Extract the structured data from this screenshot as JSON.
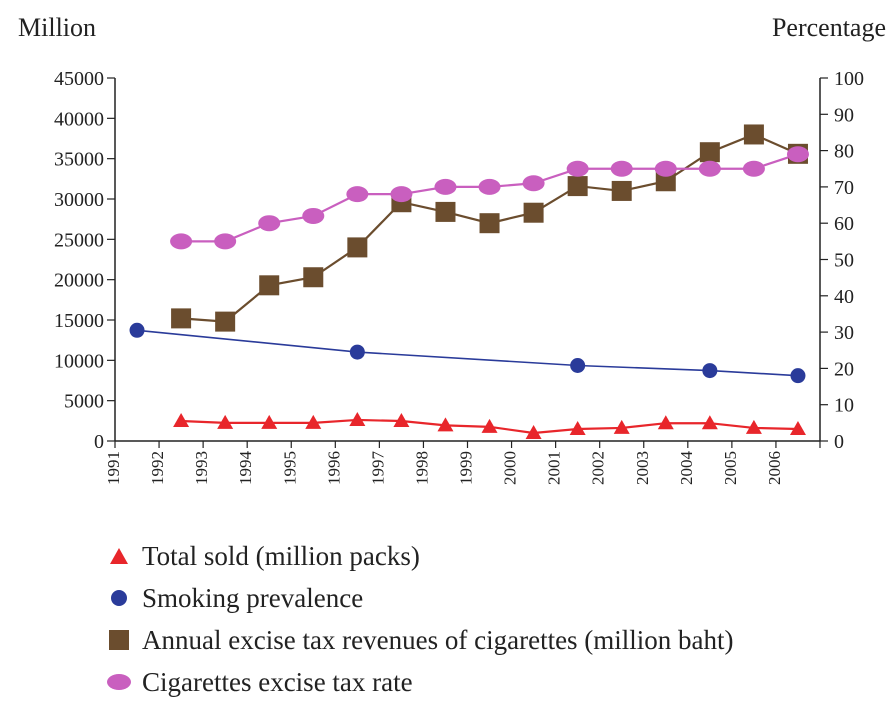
{
  "chart_data": {
    "type": "line",
    "y_left_label": "Million",
    "y_right_label": "Percentage",
    "categories": [
      "1991",
      "1992",
      "1993",
      "1994",
      "1995",
      "1996",
      "1997",
      "1998",
      "1999",
      "2000",
      "2001",
      "2002",
      "2003",
      "2004",
      "2005",
      "2006"
    ],
    "ylim_left": [
      0,
      45000
    ],
    "ylim_right": [
      0,
      100
    ],
    "left_ticks": [
      "0",
      "5000",
      "10000",
      "15000",
      "20000",
      "25000",
      "30000",
      "35000",
      "40000",
      "45000"
    ],
    "right_ticks": [
      "0",
      "10",
      "20",
      "30",
      "40",
      "50",
      "60",
      "70",
      "80",
      "90",
      "100"
    ],
    "grid": false,
    "legend_position": "bottom",
    "series": [
      {
        "name": "Total sold (million packs)",
        "axis": "right",
        "marker": "triangle",
        "color": "#e8262b",
        "points": [
          {
            "x": "1992",
            "y": 5.5
          },
          {
            "x": "1993",
            "y": 5.0
          },
          {
            "x": "1994",
            "y": 5.0
          },
          {
            "x": "1995",
            "y": 5.0
          },
          {
            "x": "1996",
            "y": 5.8
          },
          {
            "x": "1997",
            "y": 5.5
          },
          {
            "x": "1998",
            "y": 4.3
          },
          {
            "x": "1999",
            "y": 3.9
          },
          {
            "x": "2000",
            "y": 2.2
          },
          {
            "x": "2001",
            "y": 3.3
          },
          {
            "x": "2002",
            "y": 3.6
          },
          {
            "x": "2003",
            "y": 4.9
          },
          {
            "x": "2004",
            "y": 4.9
          },
          {
            "x": "2005",
            "y": 3.6
          },
          {
            "x": "2006",
            "y": 3.3
          }
        ]
      },
      {
        "name": "Smoking prevalence",
        "axis": "right",
        "marker": "circle",
        "color": "#2a3b9a",
        "points": [
          {
            "x": "1991",
            "y": 30.5
          },
          {
            "x": "1996",
            "y": 24.5
          },
          {
            "x": "2001",
            "y": 20.8
          },
          {
            "x": "2004",
            "y": 19.4
          },
          {
            "x": "2006",
            "y": 18.0
          }
        ]
      },
      {
        "name": "Annual excise tax revenues of cigarettes (million baht)",
        "axis": "left",
        "marker": "square",
        "color": "#6b4d2e",
        "points": [
          {
            "x": "1992",
            "y": 15200
          },
          {
            "x": "1993",
            "y": 14800
          },
          {
            "x": "1994",
            "y": 19300
          },
          {
            "x": "1995",
            "y": 20300
          },
          {
            "x": "1996",
            "y": 24000
          },
          {
            "x": "1997",
            "y": 29600
          },
          {
            "x": "1998",
            "y": 28400
          },
          {
            "x": "1999",
            "y": 27000
          },
          {
            "x": "2000",
            "y": 28300
          },
          {
            "x": "2001",
            "y": 31600
          },
          {
            "x": "2002",
            "y": 31000
          },
          {
            "x": "2003",
            "y": 32200
          },
          {
            "x": "2004",
            "y": 35800
          },
          {
            "x": "2005",
            "y": 38000
          },
          {
            "x": "2006",
            "y": 35600
          }
        ]
      },
      {
        "name": "Cigarettes excise tax rate",
        "axis": "right",
        "marker": "ellipse",
        "color": "#c95fbf",
        "points": [
          {
            "x": "1992",
            "y": 55
          },
          {
            "x": "1993",
            "y": 55
          },
          {
            "x": "1994",
            "y": 60
          },
          {
            "x": "1995",
            "y": 62
          },
          {
            "x": "1996",
            "y": 68
          },
          {
            "x": "1997",
            "y": 68
          },
          {
            "x": "1998",
            "y": 70
          },
          {
            "x": "1999",
            "y": 70
          },
          {
            "x": "2000",
            "y": 71
          },
          {
            "x": "2001",
            "y": 75
          },
          {
            "x": "2002",
            "y": 75
          },
          {
            "x": "2003",
            "y": 75
          },
          {
            "x": "2004",
            "y": 75
          },
          {
            "x": "2005",
            "y": 75
          },
          {
            "x": "2006",
            "y": 79
          }
        ]
      }
    ]
  }
}
